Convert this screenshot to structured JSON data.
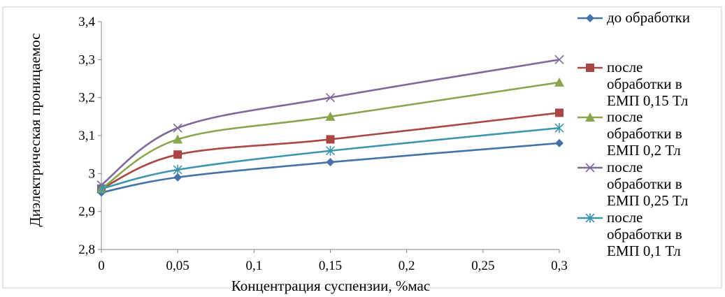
{
  "chart_data": {
    "type": "line",
    "xlabel": "Концентрация суспензии, %мас",
    "ylabel": "Диэлектрическая проницаемос",
    "x_ticks": [
      "0",
      "0,05",
      "0,1",
      "0,15",
      "0,2",
      "0,25",
      "0,3"
    ],
    "y_ticks": [
      "2,8",
      "2,9",
      "3",
      "3,1",
      "3,2",
      "3,3",
      "3,4"
    ],
    "xlim": [
      0,
      0.3
    ],
    "ylim": [
      2.8,
      3.4
    ],
    "grid": false,
    "legend_position": "right",
    "series": [
      {
        "name": "до обработки",
        "name_lines": [
          "до обработки"
        ],
        "x": [
          0,
          0.05,
          0.15,
          0.3
        ],
        "values": [
          2.95,
          2.99,
          3.03,
          3.08
        ],
        "color": "#4572A7",
        "marker": "diamond"
      },
      {
        "name": "после обработки в ЕМП 0,15 Тл",
        "name_lines": [
          "после",
          "обработки в",
          "ЕМП 0,15 Тл"
        ],
        "x": [
          0,
          0.05,
          0.15,
          0.3
        ],
        "values": [
          2.96,
          3.05,
          3.09,
          3.16
        ],
        "color": "#AA4643",
        "marker": "square"
      },
      {
        "name": "после обработки в ЕМП 0,2 Тл",
        "name_lines": [
          "после",
          "обработки в",
          "ЕМП 0,2 Тл"
        ],
        "x": [
          0,
          0.05,
          0.15,
          0.3
        ],
        "values": [
          2.96,
          3.09,
          3.15,
          3.24
        ],
        "color": "#89A54E",
        "marker": "triangle"
      },
      {
        "name": "после обработки в ЕМП 0,25 Тл",
        "name_lines": [
          "после",
          "обработки в",
          "ЕМП 0,25 Тл"
        ],
        "x": [
          0,
          0.05,
          0.15,
          0.3
        ],
        "values": [
          2.97,
          3.12,
          3.2,
          3.3
        ],
        "color": "#80699B",
        "marker": "x"
      },
      {
        "name": "после обработки в ЕМП 0,1 Тл",
        "name_lines": [
          "после",
          "обработки в",
          "ЕМП 0,1 Тл"
        ],
        "x": [
          0,
          0.05,
          0.15,
          0.3
        ],
        "values": [
          2.96,
          3.01,
          3.06,
          3.12
        ],
        "color": "#3D96AE",
        "marker": "star"
      }
    ]
  }
}
